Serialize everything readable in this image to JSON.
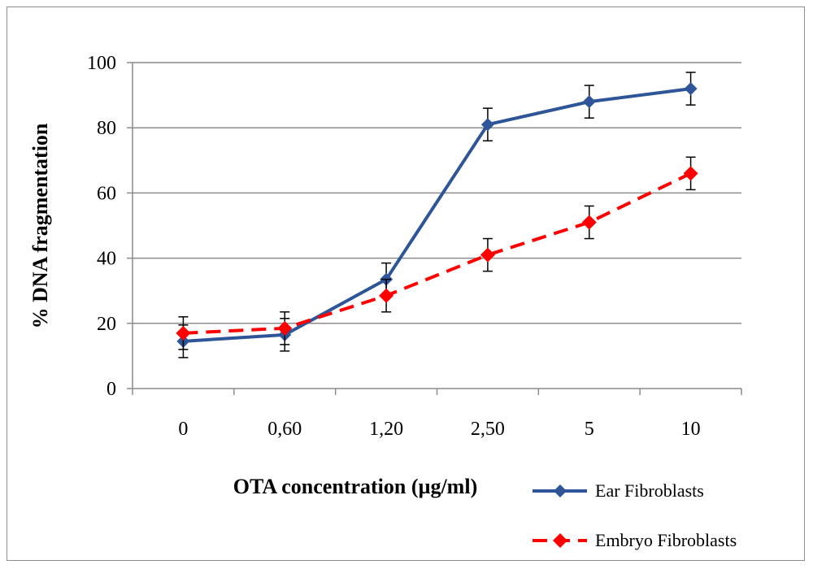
{
  "chart_data": {
    "type": "line",
    "categories": [
      "0",
      "0,60",
      "1,20",
      "2,50",
      "5",
      "10"
    ],
    "series": [
      {
        "name": "Ear Fibroblasts",
        "values": [
          14.5,
          16.5,
          33.5,
          81,
          88,
          92
        ],
        "errors": [
          5,
          5,
          5,
          5,
          5,
          5
        ],
        "color": "#2e5597",
        "line_style": "solid",
        "marker": "diamond"
      },
      {
        "name": "Embryo Fibroblasts",
        "values": [
          17,
          18.5,
          28.5,
          41,
          51,
          66
        ],
        "errors": [
          5,
          5,
          5,
          5,
          5,
          5
        ],
        "color": "#ff0000",
        "line_style": "dashed",
        "marker": "diamond"
      }
    ],
    "title": "",
    "xlabel": "OTA concentration (µg/ml)",
    "ylabel": "% DNA fragmentation",
    "ylim": [
      0,
      100
    ],
    "yticks": [
      "0",
      "20",
      "40",
      "60",
      "80",
      "100"
    ],
    "grid": true,
    "legend_position": "bottom-right"
  }
}
